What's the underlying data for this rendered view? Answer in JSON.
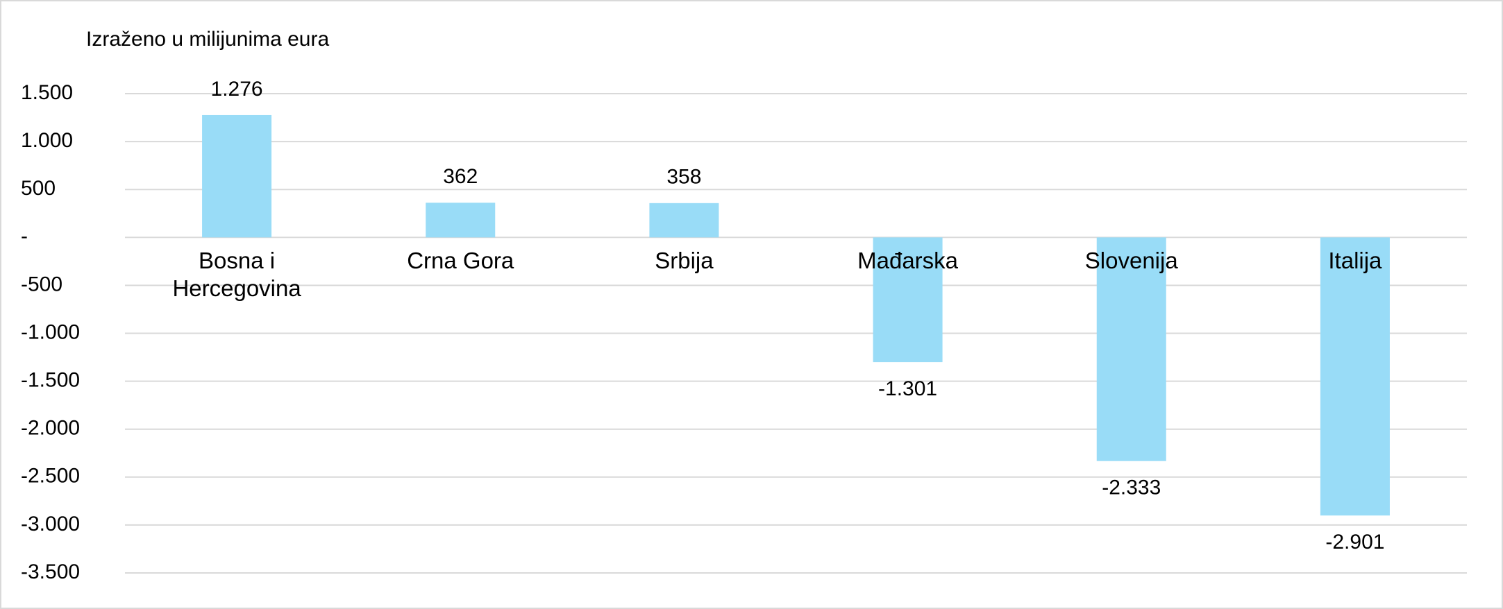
{
  "chart_data": {
    "type": "bar",
    "title": "Izraženo u milijunima eura",
    "categories": [
      "Bosna i Hercegovina",
      "Crna Gora",
      "Srbija",
      "Mađarska",
      "Slovenija",
      "Italija"
    ],
    "values": [
      1276,
      362,
      358,
      -1301,
      -2333,
      -2901
    ],
    "value_labels": [
      "1.276",
      "362",
      "358",
      "-1.301",
      "-2.333",
      "-2.901"
    ],
    "color": "#99dcf7",
    "ylim": [
      -3500,
      1500
    ],
    "yticks": [
      {
        "value": 1500,
        "label": "1.500"
      },
      {
        "value": 1000,
        "label": "1.000"
      },
      500,
      {
        "value": 0,
        "label": "-"
      },
      -500,
      {
        "value": -1000,
        "label": "-1.000"
      },
      {
        "value": -1500,
        "label": "-1.500"
      },
      {
        "value": -2000,
        "label": "-2.000"
      },
      {
        "value": -2500,
        "label": "-2.500"
      },
      {
        "value": -3000,
        "label": "-3.000"
      },
      {
        "value": -3500,
        "label": "-3.500"
      }
    ],
    "grid": true
  }
}
